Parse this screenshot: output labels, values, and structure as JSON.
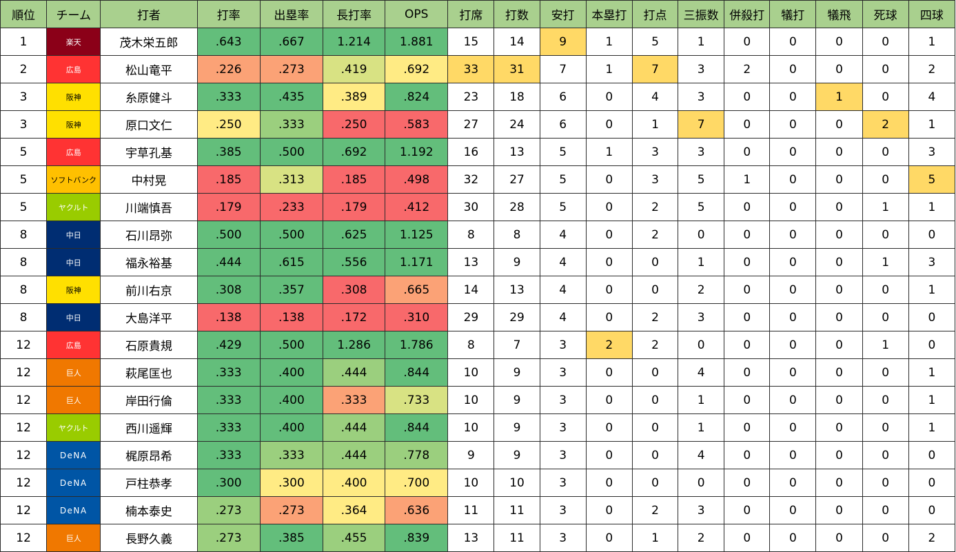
{
  "colors": {
    "header_bg": "#a9d08e",
    "green": "#63be7b",
    "light_green": "#9bcf7e",
    "yellow_green": "#d8e283",
    "yellow": "#ffeb84",
    "orange": "#fba276",
    "red": "#f8696b",
    "highlight": "#ffd966",
    "team_rakuten": "#8b0018",
    "team_hiroshima": "#ff3333",
    "team_hanshin": "#ffe000",
    "team_softbank": "#ffc000",
    "team_yakult": "#99cc00",
    "team_chunichi": "#002d72",
    "team_kyojin": "#f07800",
    "team_dena": "#0055a5"
  },
  "columns": [
    "順位",
    "チーム",
    "打者",
    "打率",
    "出塁率",
    "長打率",
    "OPS",
    "打席",
    "打数",
    "安打",
    "本塁打",
    "打点",
    "三振数",
    "併殺打",
    "犠打",
    "犠飛",
    "死球",
    "四球"
  ],
  "rows": [
    {
      "rank": "1",
      "team": "楽天",
      "team_color": "team_rakuten",
      "team_dark_text": false,
      "player": "茂木栄五郎",
      "avg": ".643",
      "obp": ".667",
      "slg": "1.214",
      "ops": "1.881",
      "pa": "15",
      "ab": "14",
      "h": "9",
      "hr": "1",
      "rbi": "5",
      "so": "1",
      "gdp": "0",
      "sh": "0",
      "sf": "0",
      "hbp": "0",
      "bb": "1",
      "fills": {
        "avg": "green",
        "obp": "green",
        "slg": "green",
        "ops": "green",
        "h": "highlight"
      }
    },
    {
      "rank": "2",
      "team": "広島",
      "team_color": "team_hiroshima",
      "team_dark_text": false,
      "player": "松山竜平",
      "avg": ".226",
      "obp": ".273",
      "slg": ".419",
      "ops": ".692",
      "pa": "33",
      "ab": "31",
      "h": "7",
      "hr": "1",
      "rbi": "7",
      "so": "3",
      "gdp": "2",
      "sh": "0",
      "sf": "0",
      "hbp": "0",
      "bb": "2",
      "fills": {
        "avg": "orange",
        "obp": "orange",
        "slg": "yellow_green",
        "ops": "yellow",
        "pa": "highlight",
        "ab": "highlight",
        "rbi": "highlight"
      }
    },
    {
      "rank": "3",
      "team": "阪神",
      "team_color": "team_hanshin",
      "team_dark_text": true,
      "player": "糸原健斗",
      "avg": ".333",
      "obp": ".435",
      "slg": ".389",
      "ops": ".824",
      "pa": "23",
      "ab": "18",
      "h": "6",
      "hr": "0",
      "rbi": "4",
      "so": "3",
      "gdp": "0",
      "sh": "0",
      "sf": "1",
      "hbp": "0",
      "bb": "4",
      "fills": {
        "avg": "green",
        "obp": "green",
        "slg": "yellow",
        "ops": "green",
        "sf": "highlight"
      }
    },
    {
      "rank": "3",
      "team": "阪神",
      "team_color": "team_hanshin",
      "team_dark_text": true,
      "player": "原口文仁",
      "avg": ".250",
      "obp": ".333",
      "slg": ".250",
      "ops": ".583",
      "pa": "27",
      "ab": "24",
      "h": "6",
      "hr": "0",
      "rbi": "1",
      "so": "7",
      "gdp": "0",
      "sh": "0",
      "sf": "0",
      "hbp": "2",
      "bb": "1",
      "fills": {
        "avg": "yellow",
        "obp": "light_green",
        "slg": "red",
        "ops": "red",
        "so": "highlight",
        "hbp": "highlight"
      }
    },
    {
      "rank": "5",
      "team": "広島",
      "team_color": "team_hiroshima",
      "team_dark_text": false,
      "player": "宇草孔基",
      "avg": ".385",
      "obp": ".500",
      "slg": ".692",
      "ops": "1.192",
      "pa": "16",
      "ab": "13",
      "h": "5",
      "hr": "1",
      "rbi": "3",
      "so": "3",
      "gdp": "0",
      "sh": "0",
      "sf": "0",
      "hbp": "0",
      "bb": "3",
      "fills": {
        "avg": "green",
        "obp": "green",
        "slg": "green",
        "ops": "green"
      }
    },
    {
      "rank": "5",
      "team": "ソフトバンク",
      "team_color": "team_softbank",
      "team_dark_text": true,
      "player": "中村晃",
      "avg": ".185",
      "obp": ".313",
      "slg": ".185",
      "ops": ".498",
      "pa": "32",
      "ab": "27",
      "h": "5",
      "hr": "0",
      "rbi": "3",
      "so": "5",
      "gdp": "1",
      "sh": "0",
      "sf": "0",
      "hbp": "0",
      "bb": "5",
      "fills": {
        "avg": "red",
        "obp": "yellow_green",
        "slg": "red",
        "ops": "red",
        "bb": "highlight"
      }
    },
    {
      "rank": "5",
      "team": "ヤクルト",
      "team_color": "team_yakult",
      "team_dark_text": false,
      "player": "川端慎吾",
      "avg": ".179",
      "obp": ".233",
      "slg": ".179",
      "ops": ".412",
      "pa": "30",
      "ab": "28",
      "h": "5",
      "hr": "0",
      "rbi": "2",
      "so": "5",
      "gdp": "0",
      "sh": "0",
      "sf": "0",
      "hbp": "1",
      "bb": "1",
      "fills": {
        "avg": "red",
        "obp": "red",
        "slg": "red",
        "ops": "red"
      }
    },
    {
      "rank": "8",
      "team": "中日",
      "team_color": "team_chunichi",
      "team_dark_text": false,
      "player": "石川昂弥",
      "avg": ".500",
      "obp": ".500",
      "slg": ".625",
      "ops": "1.125",
      "pa": "8",
      "ab": "8",
      "h": "4",
      "hr": "0",
      "rbi": "2",
      "so": "0",
      "gdp": "0",
      "sh": "0",
      "sf": "0",
      "hbp": "0",
      "bb": "0",
      "fills": {
        "avg": "green",
        "obp": "green",
        "slg": "green",
        "ops": "green"
      }
    },
    {
      "rank": "8",
      "team": "中日",
      "team_color": "team_chunichi",
      "team_dark_text": false,
      "player": "福永裕基",
      "avg": ".444",
      "obp": ".615",
      "slg": ".556",
      "ops": "1.171",
      "pa": "13",
      "ab": "9",
      "h": "4",
      "hr": "0",
      "rbi": "0",
      "so": "1",
      "gdp": "0",
      "sh": "0",
      "sf": "0",
      "hbp": "1",
      "bb": "3",
      "fills": {
        "avg": "green",
        "obp": "green",
        "slg": "green",
        "ops": "green"
      }
    },
    {
      "rank": "8",
      "team": "阪神",
      "team_color": "team_hanshin",
      "team_dark_text": true,
      "player": "前川右京",
      "avg": ".308",
      "obp": ".357",
      "slg": ".308",
      "ops": ".665",
      "pa": "14",
      "ab": "13",
      "h": "4",
      "hr": "0",
      "rbi": "0",
      "so": "2",
      "gdp": "0",
      "sh": "0",
      "sf": "0",
      "hbp": "0",
      "bb": "1",
      "fills": {
        "avg": "green",
        "obp": "green",
        "slg": "red",
        "ops": "orange"
      }
    },
    {
      "rank": "8",
      "team": "中日",
      "team_color": "team_chunichi",
      "team_dark_text": false,
      "player": "大島洋平",
      "avg": ".138",
      "obp": ".138",
      "slg": ".172",
      "ops": ".310",
      "pa": "29",
      "ab": "29",
      "h": "4",
      "hr": "0",
      "rbi": "2",
      "so": "3",
      "gdp": "0",
      "sh": "0",
      "sf": "0",
      "hbp": "0",
      "bb": "0",
      "fills": {
        "avg": "red",
        "obp": "red",
        "slg": "red",
        "ops": "red"
      }
    },
    {
      "rank": "12",
      "team": "広島",
      "team_color": "team_hiroshima",
      "team_dark_text": false,
      "player": "石原貴規",
      "avg": ".429",
      "obp": ".500",
      "slg": "1.286",
      "ops": "1.786",
      "pa": "8",
      "ab": "7",
      "h": "3",
      "hr": "2",
      "rbi": "2",
      "so": "0",
      "gdp": "0",
      "sh": "0",
      "sf": "0",
      "hbp": "1",
      "bb": "0",
      "fills": {
        "avg": "green",
        "obp": "green",
        "slg": "green",
        "ops": "green",
        "hr": "highlight"
      }
    },
    {
      "rank": "12",
      "team": "巨人",
      "team_color": "team_kyojin",
      "team_dark_text": false,
      "player": "萩尾匡也",
      "avg": ".333",
      "obp": ".400",
      "slg": ".444",
      "ops": ".844",
      "pa": "10",
      "ab": "9",
      "h": "3",
      "hr": "0",
      "rbi": "0",
      "so": "4",
      "gdp": "0",
      "sh": "0",
      "sf": "0",
      "hbp": "0",
      "bb": "1",
      "fills": {
        "avg": "green",
        "obp": "green",
        "slg": "light_green",
        "ops": "green"
      }
    },
    {
      "rank": "12",
      "team": "巨人",
      "team_color": "team_kyojin",
      "team_dark_text": false,
      "player": "岸田行倫",
      "avg": ".333",
      "obp": ".400",
      "slg": ".333",
      "ops": ".733",
      "pa": "10",
      "ab": "9",
      "h": "3",
      "hr": "0",
      "rbi": "0",
      "so": "1",
      "gdp": "0",
      "sh": "0",
      "sf": "0",
      "hbp": "0",
      "bb": "1",
      "fills": {
        "avg": "green",
        "obp": "green",
        "slg": "orange",
        "ops": "yellow_green"
      }
    },
    {
      "rank": "12",
      "team": "ヤクルト",
      "team_color": "team_yakult",
      "team_dark_text": false,
      "player": "西川遥輝",
      "avg": ".333",
      "obp": ".400",
      "slg": ".444",
      "ops": ".844",
      "pa": "10",
      "ab": "9",
      "h": "3",
      "hr": "0",
      "rbi": "0",
      "so": "1",
      "gdp": "0",
      "sh": "0",
      "sf": "0",
      "hbp": "0",
      "bb": "1",
      "fills": {
        "avg": "green",
        "obp": "green",
        "slg": "light_green",
        "ops": "green"
      }
    },
    {
      "rank": "12",
      "team": "DeNA",
      "team_color": "team_dena",
      "team_dark_text": false,
      "player": "梶原昂希",
      "avg": ".333",
      "obp": ".333",
      "slg": ".444",
      "ops": ".778",
      "pa": "9",
      "ab": "9",
      "h": "3",
      "hr": "0",
      "rbi": "0",
      "so": "4",
      "gdp": "0",
      "sh": "0",
      "sf": "0",
      "hbp": "0",
      "bb": "0",
      "fills": {
        "avg": "green",
        "obp": "light_green",
        "slg": "light_green",
        "ops": "light_green"
      }
    },
    {
      "rank": "12",
      "team": "DeNA",
      "team_color": "team_dena",
      "team_dark_text": false,
      "player": "戸柱恭孝",
      "avg": ".300",
      "obp": ".300",
      "slg": ".400",
      "ops": ".700",
      "pa": "10",
      "ab": "10",
      "h": "3",
      "hr": "0",
      "rbi": "0",
      "so": "0",
      "gdp": "0",
      "sh": "0",
      "sf": "0",
      "hbp": "0",
      "bb": "0",
      "fills": {
        "avg": "green",
        "obp": "yellow",
        "slg": "yellow",
        "ops": "yellow"
      }
    },
    {
      "rank": "12",
      "team": "DeNA",
      "team_color": "team_dena",
      "team_dark_text": false,
      "player": "楠本泰史",
      "avg": ".273",
      "obp": ".273",
      "slg": ".364",
      "ops": ".636",
      "pa": "11",
      "ab": "11",
      "h": "3",
      "hr": "0",
      "rbi": "2",
      "so": "3",
      "gdp": "0",
      "sh": "0",
      "sf": "0",
      "hbp": "0",
      "bb": "0",
      "fills": {
        "avg": "light_green",
        "obp": "orange",
        "slg": "yellow",
        "ops": "orange"
      }
    },
    {
      "rank": "12",
      "team": "巨人",
      "team_color": "team_kyojin",
      "team_dark_text": false,
      "player": "長野久義",
      "avg": ".273",
      "obp": ".385",
      "slg": ".455",
      "ops": ".839",
      "pa": "13",
      "ab": "11",
      "h": "3",
      "hr": "0",
      "rbi": "1",
      "so": "2",
      "gdp": "0",
      "sh": "0",
      "sf": "0",
      "hbp": "0",
      "bb": "2",
      "fills": {
        "avg": "light_green",
        "obp": "green",
        "slg": "light_green",
        "ops": "green"
      }
    }
  ]
}
